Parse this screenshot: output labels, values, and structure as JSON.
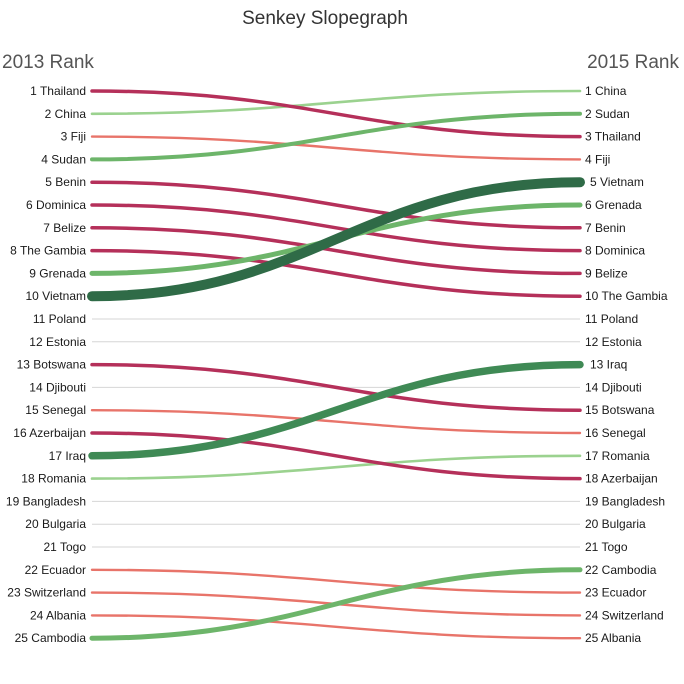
{
  "chart_data": {
    "type": "slopegraph",
    "title": "Senkey Slopegraph",
    "left_header": "2013 Rank",
    "right_header": "2015 Rank",
    "rows": [
      {
        "country": "Thailand",
        "rank_2013": 1,
        "rank_2015": 3
      },
      {
        "country": "China",
        "rank_2013": 2,
        "rank_2015": 1
      },
      {
        "country": "Fiji",
        "rank_2013": 3,
        "rank_2015": 4
      },
      {
        "country": "Sudan",
        "rank_2013": 4,
        "rank_2015": 2
      },
      {
        "country": "Benin",
        "rank_2013": 5,
        "rank_2015": 7
      },
      {
        "country": "Dominica",
        "rank_2013": 6,
        "rank_2015": 8
      },
      {
        "country": "Belize",
        "rank_2013": 7,
        "rank_2015": 9
      },
      {
        "country": "The Gambia",
        "rank_2013": 8,
        "rank_2015": 10
      },
      {
        "country": "Grenada",
        "rank_2013": 9,
        "rank_2015": 6
      },
      {
        "country": "Vietnam",
        "rank_2013": 10,
        "rank_2015": 5
      },
      {
        "country": "Poland",
        "rank_2013": 11,
        "rank_2015": 11
      },
      {
        "country": "Estonia",
        "rank_2013": 12,
        "rank_2015": 12
      },
      {
        "country": "Botswana",
        "rank_2013": 13,
        "rank_2015": 15
      },
      {
        "country": "Djibouti",
        "rank_2013": 14,
        "rank_2015": 14
      },
      {
        "country": "Senegal",
        "rank_2013": 15,
        "rank_2015": 16
      },
      {
        "country": "Azerbaijan",
        "rank_2013": 16,
        "rank_2015": 18
      },
      {
        "country": "Iraq",
        "rank_2013": 17,
        "rank_2015": 13
      },
      {
        "country": "Romania",
        "rank_2013": 18,
        "rank_2015": 17
      },
      {
        "country": "Bangladesh",
        "rank_2013": 19,
        "rank_2015": 19
      },
      {
        "country": "Bulgaria",
        "rank_2013": 20,
        "rank_2015": 20
      },
      {
        "country": "Togo",
        "rank_2013": 21,
        "rank_2015": 21
      },
      {
        "country": "Ecuador",
        "rank_2013": 22,
        "rank_2015": 23
      },
      {
        "country": "Switzerland",
        "rank_2013": 23,
        "rank_2015": 24
      },
      {
        "country": "Albania",
        "rank_2013": 24,
        "rank_2015": 25
      },
      {
        "country": "Cambodia",
        "rank_2013": 25,
        "rank_2015": 22
      }
    ],
    "colors": {
      "drop_large": "#b5305a",
      "drop_small": "#e8746a",
      "rise_small": "#9bd28f",
      "rise_medium": "#6db56a",
      "rise_large": "#3f8a55",
      "rise_xlarge": "#2f6b47",
      "unchanged": "#d6d6d6"
    }
  }
}
